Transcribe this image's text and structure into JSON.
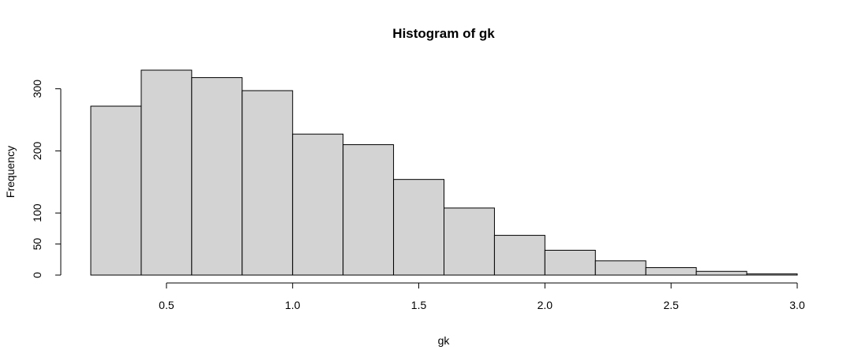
{
  "chart_data": {
    "type": "bar",
    "title": "Histogram of gk",
    "xlabel": "gk",
    "ylabel": "Frequency",
    "bin_edges": [
      0.2,
      0.4,
      0.6,
      0.8,
      1.0,
      1.2,
      1.4,
      1.6,
      1.8,
      2.0,
      2.2,
      2.4,
      2.6,
      2.8,
      3.0
    ],
    "values": [
      272,
      330,
      318,
      297,
      227,
      210,
      154,
      108,
      64,
      40,
      23,
      12,
      6,
      2
    ],
    "x_ticks": [
      {
        "value": 0.5,
        "label": "0.5"
      },
      {
        "value": 1.0,
        "label": "1.0"
      },
      {
        "value": 1.5,
        "label": "1.5"
      },
      {
        "value": 2.0,
        "label": "2.0"
      },
      {
        "value": 2.5,
        "label": "2.5"
      },
      {
        "value": 3.0,
        "label": "3.0"
      }
    ],
    "y_ticks": [
      {
        "value": 0,
        "label": "0"
      },
      {
        "value": 50,
        "label": "50"
      },
      {
        "value": 100,
        "label": "100"
      },
      {
        "value": 200,
        "label": "200"
      },
      {
        "value": 300,
        "label": "300"
      }
    ],
    "xlim": [
      0.2,
      3.0
    ],
    "ylim": [
      0,
      330
    ],
    "bar_fill": "#d3d3d3",
    "bar_stroke": "#000000",
    "grid": false
  }
}
